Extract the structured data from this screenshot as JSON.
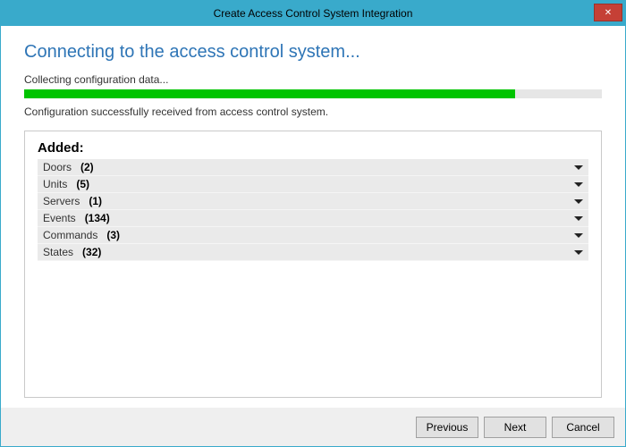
{
  "window": {
    "title": "Create Access Control System Integration",
    "close_glyph": "✕"
  },
  "main": {
    "heading": "Connecting to the access control system...",
    "status": "Collecting configuration data...",
    "progress_percent": 85,
    "progress_fill_color": "#00c400",
    "progress_track_color": "#e6e6e6",
    "success": "Configuration successfully received from access control system.",
    "added_label": "Added:",
    "items": [
      {
        "label": "Doors",
        "count": "(2)"
      },
      {
        "label": "Units",
        "count": "(5)"
      },
      {
        "label": "Servers",
        "count": "(1)"
      },
      {
        "label": "Events",
        "count": "(134)"
      },
      {
        "label": "Commands",
        "count": "(3)"
      },
      {
        "label": "States",
        "count": "(32)"
      }
    ]
  },
  "buttons": {
    "previous": "Previous",
    "next": "Next",
    "cancel": "Cancel"
  },
  "colors": {
    "accent": "#39aacb",
    "heading": "#2e75b6",
    "close_bg": "#c54036",
    "row_bg": "#eaeaea",
    "border": "#c9c9c9"
  }
}
